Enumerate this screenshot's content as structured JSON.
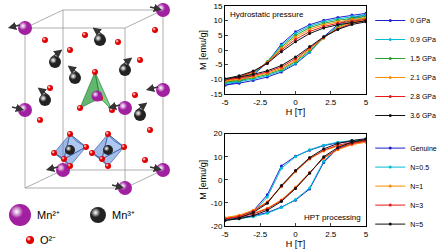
{
  "diagram": {
    "legend": [
      {
        "label": "Mn²⁺",
        "color": "#a020a0"
      },
      {
        "label": "Mn³⁺",
        "color": "#222222"
      },
      {
        "label": "O²⁻",
        "color": "#e00000"
      }
    ]
  },
  "chart_data": [
    {
      "type": "line",
      "annotation": "Hydrostatic pressure",
      "xlabel": "H [T]",
      "ylabel": "M [emu/g]",
      "x": [
        5,
        4,
        3,
        2,
        1,
        0,
        -1,
        -2,
        -3,
        -4,
        -5,
        -4,
        -3,
        -2,
        -1,
        0,
        1,
        2,
        3,
        4,
        5
      ],
      "xlim": [
        -5,
        5
      ],
      "xticks": [
        -5,
        -2.5,
        0,
        2.5,
        5
      ],
      "ylim": [
        -15,
        15
      ],
      "yticks": [
        -15,
        -10,
        -5,
        0,
        5,
        10,
        15
      ],
      "grid": false,
      "legend": "right",
      "marker": "circle",
      "line_style": "solid",
      "series": [
        {
          "name": "0 GPa",
          "color": "#1f1fd0",
          "values": [
            12.5,
            11.9,
            11.1,
            10.1,
            8.6,
            6.2,
            2.0,
            -4.2,
            -8.6,
            -10.9,
            -12.0,
            -11.3,
            -10.4,
            -9.2,
            -7.5,
            -4.8,
            -0.8,
            4.5,
            8.7,
            10.9,
            12.1
          ]
        },
        {
          "name": "0.9 GPa",
          "color": "#00bcd4",
          "values": [
            12.0,
            11.4,
            10.6,
            9.6,
            8.1,
            5.6,
            1.5,
            -4.0,
            -8.2,
            -10.4,
            -11.5,
            -10.8,
            -9.9,
            -8.7,
            -7.1,
            -4.5,
            -0.6,
            4.2,
            8.2,
            10.4,
            11.6
          ]
        },
        {
          "name": "1.5 GPa",
          "color": "#2ca02c",
          "values": [
            11.5,
            10.9,
            10.1,
            9.1,
            7.6,
            5.0,
            1.0,
            -4.0,
            -7.9,
            -10.0,
            -11.0,
            -10.4,
            -9.5,
            -8.3,
            -6.7,
            -4.0,
            -0.2,
            4.1,
            7.8,
            9.9,
            11.0
          ]
        },
        {
          "name": "2.1 GPa",
          "color": "#ff8c00",
          "values": [
            11.0,
            10.4,
            9.6,
            8.6,
            7.0,
            4.4,
            0.5,
            -4.2,
            -7.6,
            -9.6,
            -10.6,
            -10.0,
            -9.1,
            -7.9,
            -6.3,
            -3.6,
            0.3,
            4.2,
            7.5,
            9.5,
            10.5
          ]
        },
        {
          "name": "2.8 GPa",
          "color": "#e41a1c",
          "values": [
            10.5,
            9.9,
            9.1,
            8.0,
            6.3,
            3.6,
            0.0,
            -4.4,
            -7.4,
            -9.2,
            -10.2,
            -9.6,
            -8.7,
            -7.5,
            -5.8,
            -3.0,
            0.8,
            4.3,
            7.2,
            9.1,
            10.0
          ]
        },
        {
          "name": "3.6 GPa",
          "color": "#111111",
          "values": [
            10.0,
            9.4,
            8.6,
            7.5,
            5.6,
            2.8,
            -0.6,
            -4.6,
            -7.2,
            -8.8,
            -9.8,
            -9.2,
            -8.3,
            -7.1,
            -5.3,
            -2.4,
            1.2,
            4.5,
            7.0,
            8.7,
            9.6
          ]
        }
      ]
    },
    {
      "type": "line",
      "annotation": "HPT processing",
      "xlabel": "H [T]",
      "ylabel": "M [emu/g]",
      "x": [
        5,
        4,
        3,
        2,
        1,
        0,
        -1,
        -2,
        -3,
        -4,
        -5,
        -4,
        -3,
        -2,
        -1,
        0,
        1,
        2,
        3,
        4,
        5
      ],
      "xlim": [
        -5,
        5
      ],
      "xticks": [
        -5,
        -2.5,
        0,
        2.5,
        5
      ],
      "ylim": [
        -20,
        20
      ],
      "yticks": [
        -20,
        -10,
        0,
        10,
        20
      ],
      "grid": false,
      "legend": "right",
      "marker": "circle",
      "line_style": "solid",
      "series": [
        {
          "name": "Genuine",
          "color": "#1f1fd0",
          "values": [
            17.2,
            16.7,
            16.0,
            14.8,
            12.8,
            10.2,
            6.0,
            -6.5,
            -13.5,
            -15.9,
            -17.0,
            -16.4,
            -15.6,
            -14.2,
            -11.8,
            -8.8,
            -4.0,
            7.5,
            13.6,
            15.9,
            16.8
          ]
        },
        {
          "name": "N=0.5",
          "color": "#00bcd4",
          "values": [
            17.5,
            17.0,
            16.3,
            15.0,
            13.0,
            10.0,
            5.0,
            -7.5,
            -14.0,
            -16.3,
            -17.4,
            -16.8,
            -16.0,
            -14.5,
            -12.0,
            -8.5,
            -3.5,
            8.0,
            14.0,
            16.2,
            17.1
          ]
        },
        {
          "name": "N=1",
          "color": "#ff8c00",
          "values": [
            16.5,
            15.8,
            14.6,
            12.5,
            9.0,
            3.5,
            -3.0,
            -9.5,
            -13.2,
            -15.3,
            -16.4,
            -15.7,
            -14.5,
            -12.3,
            -8.7,
            -3.2,
            3.2,
            9.3,
            13.0,
            15.2,
            16.3
          ]
        },
        {
          "name": "N=3",
          "color": "#e41a1c",
          "values": [
            17.0,
            16.2,
            15.0,
            12.8,
            9.2,
            3.8,
            -2.8,
            -9.8,
            -13.6,
            -15.8,
            -16.9,
            -16.1,
            -14.8,
            -12.6,
            -9.0,
            -3.5,
            3.0,
            9.5,
            13.4,
            15.6,
            16.8
          ]
        },
        {
          "name": "N=5",
          "color": "#111111",
          "values": [
            17.8,
            17.0,
            15.7,
            13.4,
            9.6,
            4.0,
            -2.5,
            -10.2,
            -14.2,
            -16.5,
            -17.6,
            -16.9,
            -15.5,
            -13.2,
            -9.4,
            -3.8,
            2.8,
            10.0,
            14.0,
            16.3,
            17.5
          ]
        }
      ]
    }
  ]
}
